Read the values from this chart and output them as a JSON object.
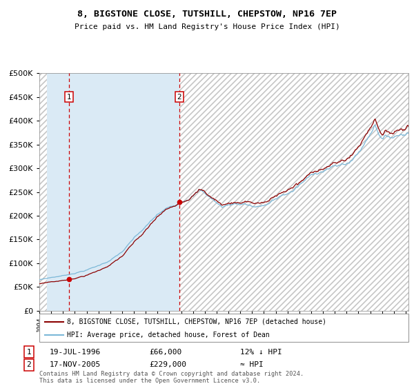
{
  "title": "8, BIGSTONE CLOSE, TUTSHILL, CHEPSTOW, NP16 7EP",
  "subtitle": "Price paid vs. HM Land Registry's House Price Index (HPI)",
  "sale1_date": "19-JUL-1996",
  "sale1_price": 66000,
  "sale1_year": 1996,
  "sale1_month": 7,
  "sale1_label": "12% ↓ HPI",
  "sale2_date": "17-NOV-2005",
  "sale2_price": 229000,
  "sale2_year": 2005,
  "sale2_month": 11,
  "sale2_label": "≈ HPI",
  "legend_line1": "8, BIGSTONE CLOSE, TUTSHILL, CHEPSTOW, NP16 7EP (detached house)",
  "legend_line2": "HPI: Average price, detached house, Forest of Dean",
  "footer": "Contains HM Land Registry data © Crown copyright and database right 2024.\nThis data is licensed under the Open Government Licence v3.0.",
  "hpi_color": "#7bb8d8",
  "price_color": "#8b0000",
  "sale_dot_color": "#cc0000",
  "vline_color": "#cc0000",
  "bg_shaded_color": "#daeaf5",
  "hatch_color": "#c8c8c8",
  "ylim_max": 500000,
  "ylim_min": 0,
  "xstart_year": 1994,
  "xend_year": 2025
}
